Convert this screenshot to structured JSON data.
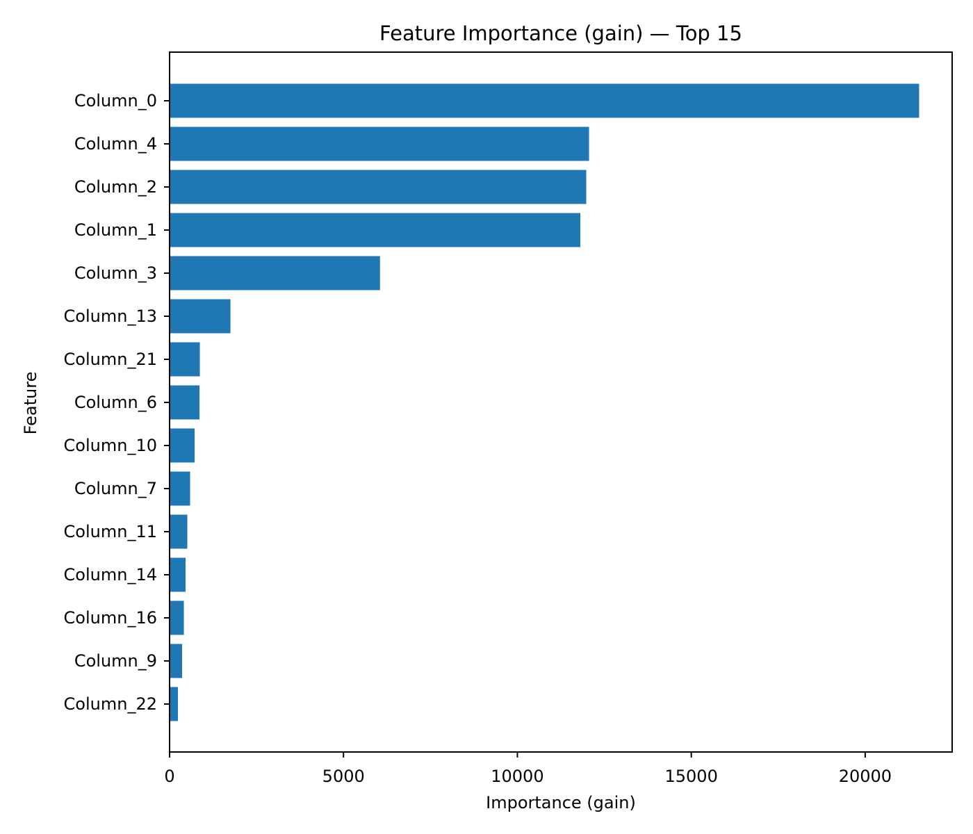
{
  "chart_data": {
    "type": "bar",
    "orientation": "horizontal",
    "title": "Feature Importance (gain) — Top 15",
    "xlabel": "Importance (gain)",
    "ylabel": "Feature",
    "xlim": [
      0,
      22500
    ],
    "x_ticks": [
      0,
      5000,
      10000,
      15000,
      20000
    ],
    "x_tick_labels": [
      "0",
      "5000",
      "10000",
      "15000",
      "20000"
    ],
    "categories": [
      "Column_0",
      "Column_4",
      "Column_2",
      "Column_1",
      "Column_3",
      "Column_13",
      "Column_21",
      "Column_6",
      "Column_10",
      "Column_7",
      "Column_11",
      "Column_14",
      "Column_16",
      "Column_9",
      "Column_22"
    ],
    "values": [
      21550,
      12060,
      11980,
      11810,
      6050,
      1750,
      870,
      860,
      720,
      590,
      510,
      460,
      410,
      360,
      240
    ],
    "bar_color": "#1f77b4",
    "grid": false
  }
}
